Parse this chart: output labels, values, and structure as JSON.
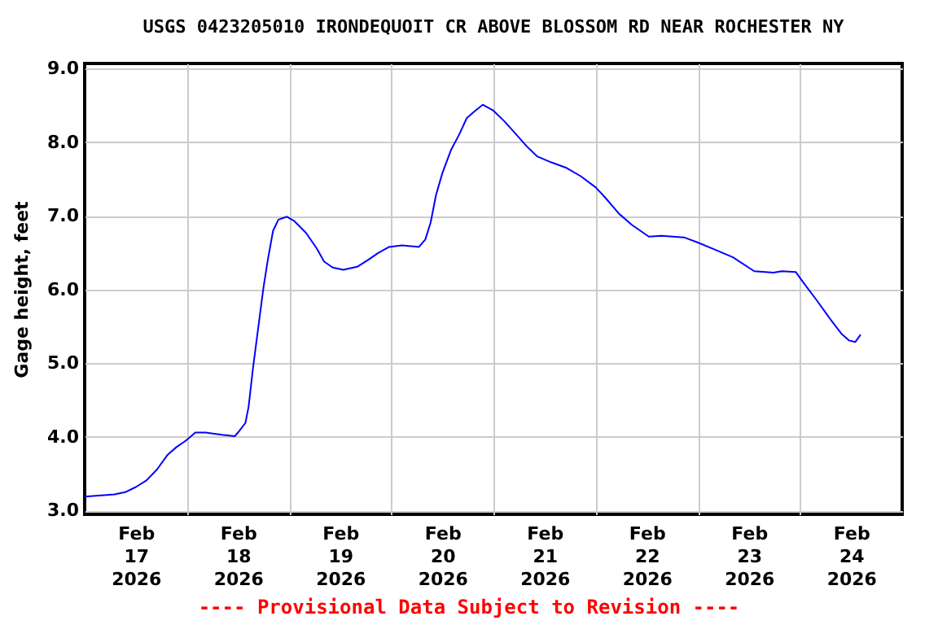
{
  "chart_data": {
    "type": "line",
    "title": "USGS 0423205010 IRONDEQUOIT CR ABOVE BLOSSOM RD NEAR ROCHESTER NY",
    "ylabel": "Gage height, feet",
    "annotations": [
      "---- Provisional Data Subject to Revision ----"
    ],
    "x": [
      "2026-02-17T00:00",
      "2026-02-17T07:00",
      "2026-02-17T09:30",
      "2026-02-17T12:00",
      "2026-02-17T14:30",
      "2026-02-17T17:00",
      "2026-02-17T19:30",
      "2026-02-17T21:30",
      "2026-02-17T23:45",
      "2026-02-18T02:00",
      "2026-02-18T04:30",
      "2026-02-18T08:15",
      "2026-02-18T11:15",
      "2026-02-18T12:00",
      "2026-02-18T13:45",
      "2026-02-18T14:30",
      "2026-02-18T15:30",
      "2026-02-18T17:00",
      "2026-02-18T18:00",
      "2026-02-18T19:00",
      "2026-02-18T20:15",
      "2026-02-18T21:30",
      "2026-02-18T23:30",
      "2026-02-19T01:15",
      "2026-02-19T04:00",
      "2026-02-19T06:30",
      "2026-02-19T08:15",
      "2026-02-19T10:15",
      "2026-02-19T12:45",
      "2026-02-19T16:00",
      "2026-02-19T18:30",
      "2026-02-19T21:00",
      "2026-02-19T23:30",
      "2026-02-20T02:30",
      "2026-02-20T06:30",
      "2026-02-20T08:00",
      "2026-02-20T09:15",
      "2026-02-20T10:30",
      "2026-02-20T12:00",
      "2026-02-20T14:00",
      "2026-02-20T16:00",
      "2026-02-20T17:45",
      "2026-02-20T19:45",
      "2026-02-20T21:30",
      "2026-02-21T00:00",
      "2026-02-21T02:30",
      "2026-02-21T05:00",
      "2026-02-21T07:45",
      "2026-02-21T10:15",
      "2026-02-21T13:30",
      "2026-02-21T17:15",
      "2026-02-21T20:30",
      "2026-02-22T00:00",
      "2026-02-22T02:15",
      "2026-02-22T05:30",
      "2026-02-22T08:30",
      "2026-02-22T12:30",
      "2026-02-22T15:30",
      "2026-02-22T20:45",
      "2026-02-23T00:00",
      "2026-02-23T03:45",
      "2026-02-23T08:15",
      "2026-02-23T13:15",
      "2026-02-23T17:45",
      "2026-02-23T19:45",
      "2026-02-23T23:00",
      "2026-02-24T00:45",
      "2026-02-24T04:00",
      "2026-02-24T07:15",
      "2026-02-24T09:45",
      "2026-02-24T11:30",
      "2026-02-24T13:00",
      "2026-02-24T14:15"
    ],
    "series": [
      {
        "color": "#0000ff",
        "values": [
          3.19,
          3.22,
          3.25,
          3.32,
          3.41,
          3.56,
          3.76,
          3.86,
          3.95,
          4.06,
          4.06,
          4.03,
          4.01,
          4.06,
          4.19,
          4.41,
          4.92,
          5.59,
          6.03,
          6.4,
          6.8,
          6.95,
          6.99,
          6.93,
          6.77,
          6.56,
          6.38,
          6.3,
          6.27,
          6.31,
          6.4,
          6.5,
          6.58,
          6.6,
          6.58,
          6.68,
          6.91,
          7.28,
          7.58,
          7.89,
          8.11,
          8.33,
          8.43,
          8.51,
          8.43,
          8.29,
          8.13,
          7.95,
          7.81,
          7.73,
          7.65,
          7.54,
          7.39,
          7.25,
          7.03,
          6.88,
          6.72,
          6.73,
          6.71,
          6.64,
          6.55,
          6.44,
          6.25,
          6.23,
          6.25,
          6.24,
          6.1,
          5.85,
          5.59,
          5.4,
          5.31,
          5.29,
          5.39
        ]
      }
    ],
    "xlim": [
      "2026-02-17T00:00",
      "2026-02-25T00:00"
    ],
    "xticks": [
      {
        "value": "2026-02-17T12:00",
        "label": "Feb\n17\n2026"
      },
      {
        "value": "2026-02-18T00:00",
        "label": null
      },
      {
        "value": "2026-02-18T12:00",
        "label": "Feb\n18\n2026"
      },
      {
        "value": "2026-02-19T00:00",
        "label": null
      },
      {
        "value": "2026-02-19T12:00",
        "label": "Feb\n19\n2026"
      },
      {
        "value": "2026-02-20T00:00",
        "label": null
      },
      {
        "value": "2026-02-20T12:00",
        "label": "Feb\n20\n2026"
      },
      {
        "value": "2026-02-21T00:00",
        "label": null
      },
      {
        "value": "2026-02-21T12:00",
        "label": "Feb\n21\n2026"
      },
      {
        "value": "2026-02-22T00:00",
        "label": null
      },
      {
        "value": "2026-02-22T12:00",
        "label": "Feb\n22\n2026"
      },
      {
        "value": "2026-02-23T00:00",
        "label": null
      },
      {
        "value": "2026-02-23T12:00",
        "label": "Feb\n23\n2026"
      },
      {
        "value": "2026-02-24T00:00",
        "label": null
      },
      {
        "value": "2026-02-24T12:00",
        "label": "Feb\n24\n2026"
      }
    ],
    "ylim": [
      2.95,
      9.07
    ],
    "yticks": [
      {
        "value": 3,
        "label": "3.0"
      },
      {
        "value": 4,
        "label": "4.0"
      },
      {
        "value": 5,
        "label": "5.0"
      },
      {
        "value": 6,
        "label": "6.0"
      },
      {
        "value": 7,
        "label": "7.0"
      },
      {
        "value": 8,
        "label": "8.0"
      },
      {
        "value": 9,
        "label": "9.0"
      }
    ],
    "grid": true
  }
}
